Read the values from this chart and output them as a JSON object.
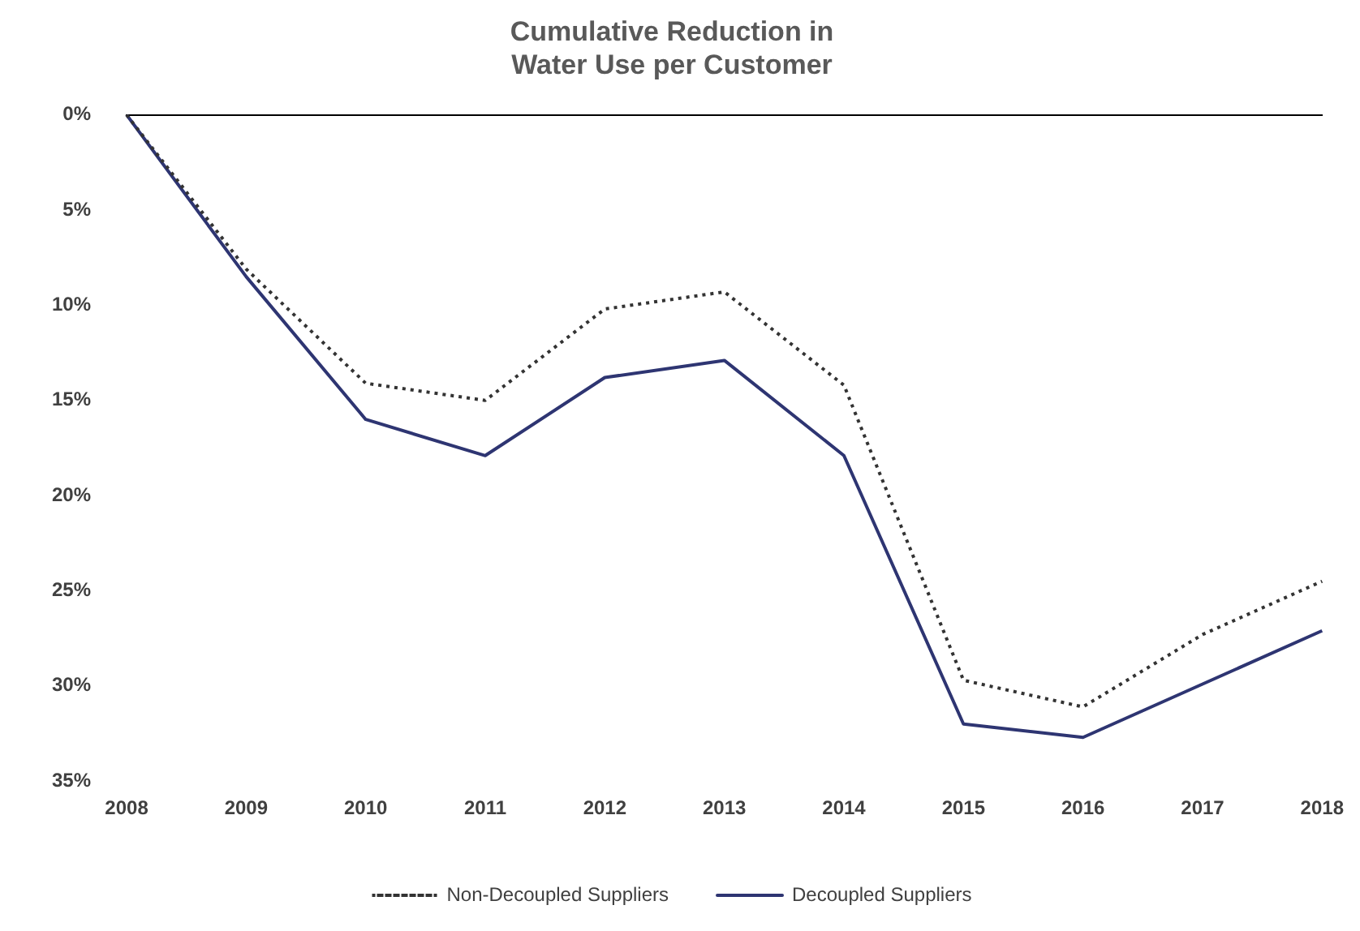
{
  "chart_data": {
    "type": "line",
    "title": "Cumulative Reduction in\nWater Use per Customer",
    "categories": [
      "2008",
      "2009",
      "2010",
      "2011",
      "2012",
      "2013",
      "2014",
      "2015",
      "2016",
      "2017",
      "2018"
    ],
    "series": [
      {
        "name": "Non-Decoupled Suppliers",
        "color": "#333333",
        "line_style": "dotted",
        "values": [
          0,
          8.1,
          14.1,
          15.0,
          10.2,
          9.3,
          14.2,
          29.7,
          31.1,
          27.3,
          24.5
        ]
      },
      {
        "name": "Decoupled Suppliers",
        "color": "#2e3572",
        "line_style": "solid",
        "values": [
          0,
          8.5,
          16.0,
          17.9,
          13.8,
          12.9,
          17.9,
          32.0,
          32.7,
          29.9,
          27.1
        ]
      }
    ],
    "ylim": [
      35,
      0
    ],
    "yticks": [
      {
        "value": 0,
        "label": "0%"
      },
      {
        "value": 5,
        "label": "5%"
      },
      {
        "value": 10,
        "label": "10%"
      },
      {
        "value": 15,
        "label": "15%"
      },
      {
        "value": 20,
        "label": "20%"
      },
      {
        "value": 25,
        "label": "25%"
      },
      {
        "value": 30,
        "label": "30%"
      },
      {
        "value": 35,
        "label": "35%"
      }
    ],
    "grid": false,
    "legend": "bottom",
    "marker": "none"
  }
}
